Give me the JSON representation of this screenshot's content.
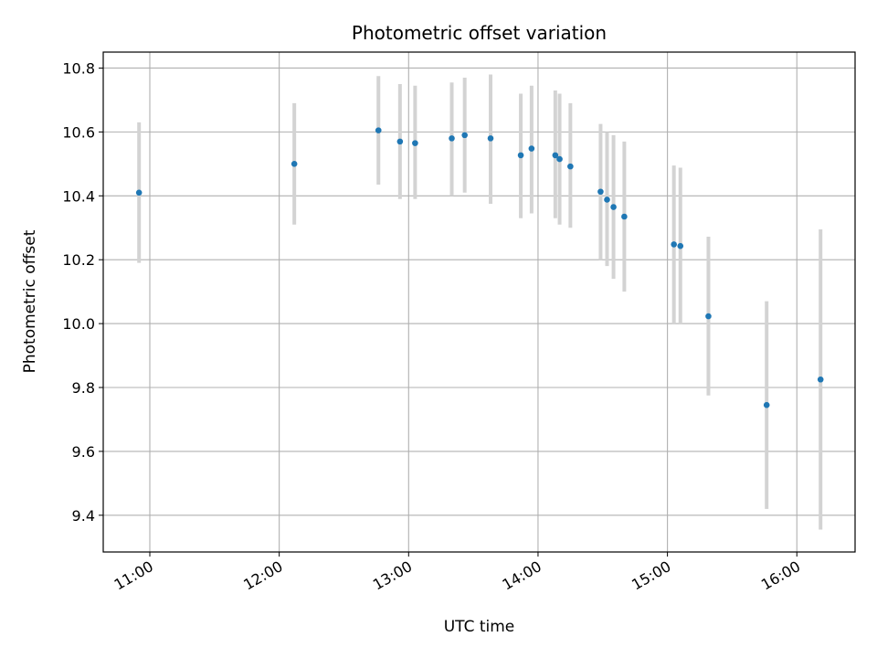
{
  "chart_data": {
    "type": "scatter",
    "title": "Photometric offset variation",
    "xlabel": "UTC time",
    "ylabel": "Photometric offset",
    "x_unit": "hours (UTC)",
    "xlim": [
      10.64,
      16.45
    ],
    "ylim": [
      9.285,
      10.85
    ],
    "x_ticks": [
      {
        "value": 11,
        "label": "11:00"
      },
      {
        "value": 12,
        "label": "12:00"
      },
      {
        "value": 13,
        "label": "13:00"
      },
      {
        "value": 14,
        "label": "14:00"
      },
      {
        "value": 15,
        "label": "15:00"
      },
      {
        "value": 16,
        "label": "16:00"
      }
    ],
    "y_ticks": [
      {
        "value": 9.4,
        "label": "9.4"
      },
      {
        "value": 9.6,
        "label": "9.6"
      },
      {
        "value": 9.8,
        "label": "9.8"
      },
      {
        "value": 10.0,
        "label": "10.0"
      },
      {
        "value": 10.2,
        "label": "10.2"
      },
      {
        "value": 10.4,
        "label": "10.4"
      },
      {
        "value": 10.6,
        "label": "10.6"
      },
      {
        "value": 10.8,
        "label": "10.8"
      }
    ],
    "grid": true,
    "point_color": "#1f77b4",
    "errorbar_color": "#d3d3d3",
    "points": [
      {
        "x": "10:55",
        "y": 10.41,
        "ylow": 10.19,
        "yhigh": 10.63
      },
      {
        "x": "12:07",
        "y": 10.5,
        "ylow": 10.31,
        "yhigh": 10.69
      },
      {
        "x": "12:46",
        "y": 10.605,
        "ylow": 10.435,
        "yhigh": 10.775
      },
      {
        "x": "12:56",
        "y": 10.57,
        "ylow": 10.39,
        "yhigh": 10.75
      },
      {
        "x": "13:03",
        "y": 10.565,
        "ylow": 10.39,
        "yhigh": 10.745
      },
      {
        "x": "13:20",
        "y": 10.58,
        "ylow": 10.4,
        "yhigh": 10.755
      },
      {
        "x": "13:26",
        "y": 10.59,
        "ylow": 10.41,
        "yhigh": 10.77
      },
      {
        "x": "13:38",
        "y": 10.58,
        "ylow": 10.375,
        "yhigh": 10.78
      },
      {
        "x": "13:52",
        "y": 10.527,
        "ylow": 10.33,
        "yhigh": 10.72
      },
      {
        "x": "13:57",
        "y": 10.548,
        "ylow": 10.345,
        "yhigh": 10.745
      },
      {
        "x": "14:08",
        "y": 10.527,
        "ylow": 10.33,
        "yhigh": 10.73
      },
      {
        "x": "14:10",
        "y": 10.515,
        "ylow": 10.31,
        "yhigh": 10.72
      },
      {
        "x": "14:15",
        "y": 10.492,
        "ylow": 10.3,
        "yhigh": 10.69
      },
      {
        "x": "14:29",
        "y": 10.413,
        "ylow": 10.2,
        "yhigh": 10.625
      },
      {
        "x": "14:32",
        "y": 10.388,
        "ylow": 10.18,
        "yhigh": 10.6
      },
      {
        "x": "14:35",
        "y": 10.365,
        "ylow": 10.14,
        "yhigh": 10.59
      },
      {
        "x": "14:40",
        "y": 10.335,
        "ylow": 10.1,
        "yhigh": 10.57
      },
      {
        "x": "15:03",
        "y": 10.248,
        "ylow": 10.0,
        "yhigh": 10.495
      },
      {
        "x": "15:06",
        "y": 10.243,
        "ylow": 10.0,
        "yhigh": 10.488
      },
      {
        "x": "15:19",
        "y": 10.023,
        "ylow": 9.775,
        "yhigh": 10.272
      },
      {
        "x": "15:46",
        "y": 9.745,
        "ylow": 9.42,
        "yhigh": 10.07
      },
      {
        "x": "16:11",
        "y": 9.825,
        "ylow": 9.355,
        "yhigh": 10.295
      }
    ]
  }
}
